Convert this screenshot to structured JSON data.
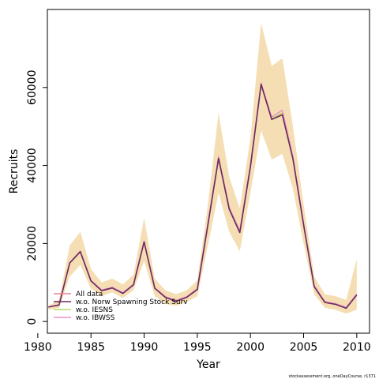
{
  "chart_data": {
    "type": "line",
    "xlabel": "Year",
    "ylabel": "Recruits",
    "xlim": [
      1980.9,
      2011.2
    ],
    "ylim": [
      -3000,
      80000
    ],
    "xticks": [
      1980,
      1985,
      1990,
      1995,
      2000,
      2005,
      2010
    ],
    "yticks": [
      0,
      20000,
      40000,
      60000
    ],
    "x": [
      1981,
      1982,
      1983,
      1984,
      1985,
      1986,
      1987,
      1988,
      1989,
      1990,
      1991,
      1992,
      1993,
      1994,
      1995,
      1996,
      1997,
      1998,
      1999,
      2000,
      2001,
      2002,
      2003,
      2004,
      2005,
      2006,
      2007,
      2008,
      2009,
      2010
    ],
    "band": {
      "upper": [
        4000,
        5500,
        19500,
        23000,
        13500,
        10000,
        11000,
        9500,
        12000,
        26500,
        11000,
        8000,
        7000,
        8000,
        10500,
        30000,
        53500,
        37000,
        29000,
        47000,
        76500,
        65500,
        67500,
        50000,
        30000,
        11500,
        7000,
        6500,
        5500,
        16000
      ],
      "lower": [
        3000,
        3500,
        11500,
        14500,
        8500,
        6500,
        7500,
        6000,
        8000,
        15500,
        6500,
        4500,
        4000,
        5000,
        6500,
        19500,
        33000,
        23000,
        18000,
        33000,
        49000,
        41500,
        43000,
        34000,
        20000,
        7000,
        3500,
        3000,
        2000,
        3000
      ],
      "color": "#f5deb3"
    },
    "series": [
      {
        "name": "All data",
        "color": "#e8829c",
        "values": [
          3700,
          4300,
          15000,
          18000,
          10500,
          8000,
          8700,
          7300,
          9500,
          20500,
          8600,
          6300,
          5300,
          6300,
          8300,
          25000,
          42000,
          29000,
          23000,
          40000,
          61000,
          52000,
          53500,
          42000,
          25000,
          9000,
          5000,
          4500,
          3500,
          7000
        ]
      },
      {
        "name": "w.o. Norw Spawning Stock Surv",
        "color": "#6b2b5e",
        "values": [
          3700,
          4200,
          15000,
          17900,
          10400,
          7900,
          8600,
          7200,
          9400,
          20400,
          8500,
          6200,
          5200,
          6200,
          8200,
          24800,
          41800,
          28800,
          22800,
          39700,
          60800,
          51800,
          53000,
          41700,
          24800,
          8900,
          4900,
          4400,
          3400,
          6800
        ]
      },
      {
        "name": "w.o. IESNS",
        "color": "#b5d96a",
        "values": [
          3700,
          4300,
          15000,
          18000,
          10500,
          8000,
          8700,
          7300,
          9500,
          20500,
          8600,
          6300,
          5300,
          6300,
          8300,
          25000,
          42000,
          29000,
          23000,
          40000,
          61000,
          52000,
          53500,
          42000,
          25000,
          9000,
          5000,
          4500,
          3500,
          7000
        ]
      },
      {
        "name": "w.o. IBWSS",
        "color": "#e88fc8",
        "values": [
          3750,
          4350,
          15100,
          18100,
          10600,
          8100,
          8800,
          7400,
          9600,
          20600,
          8700,
          6400,
          5400,
          6400,
          8400,
          25200,
          42300,
          29300,
          23300,
          40300,
          61200,
          52400,
          54200,
          42300,
          25200,
          9200,
          5100,
          4600,
          3600,
          7100
        ]
      }
    ],
    "legend_position": "bottom-left",
    "grid": false,
    "footnote": "stockassessment.org, oneDayCourse, r1371"
  }
}
